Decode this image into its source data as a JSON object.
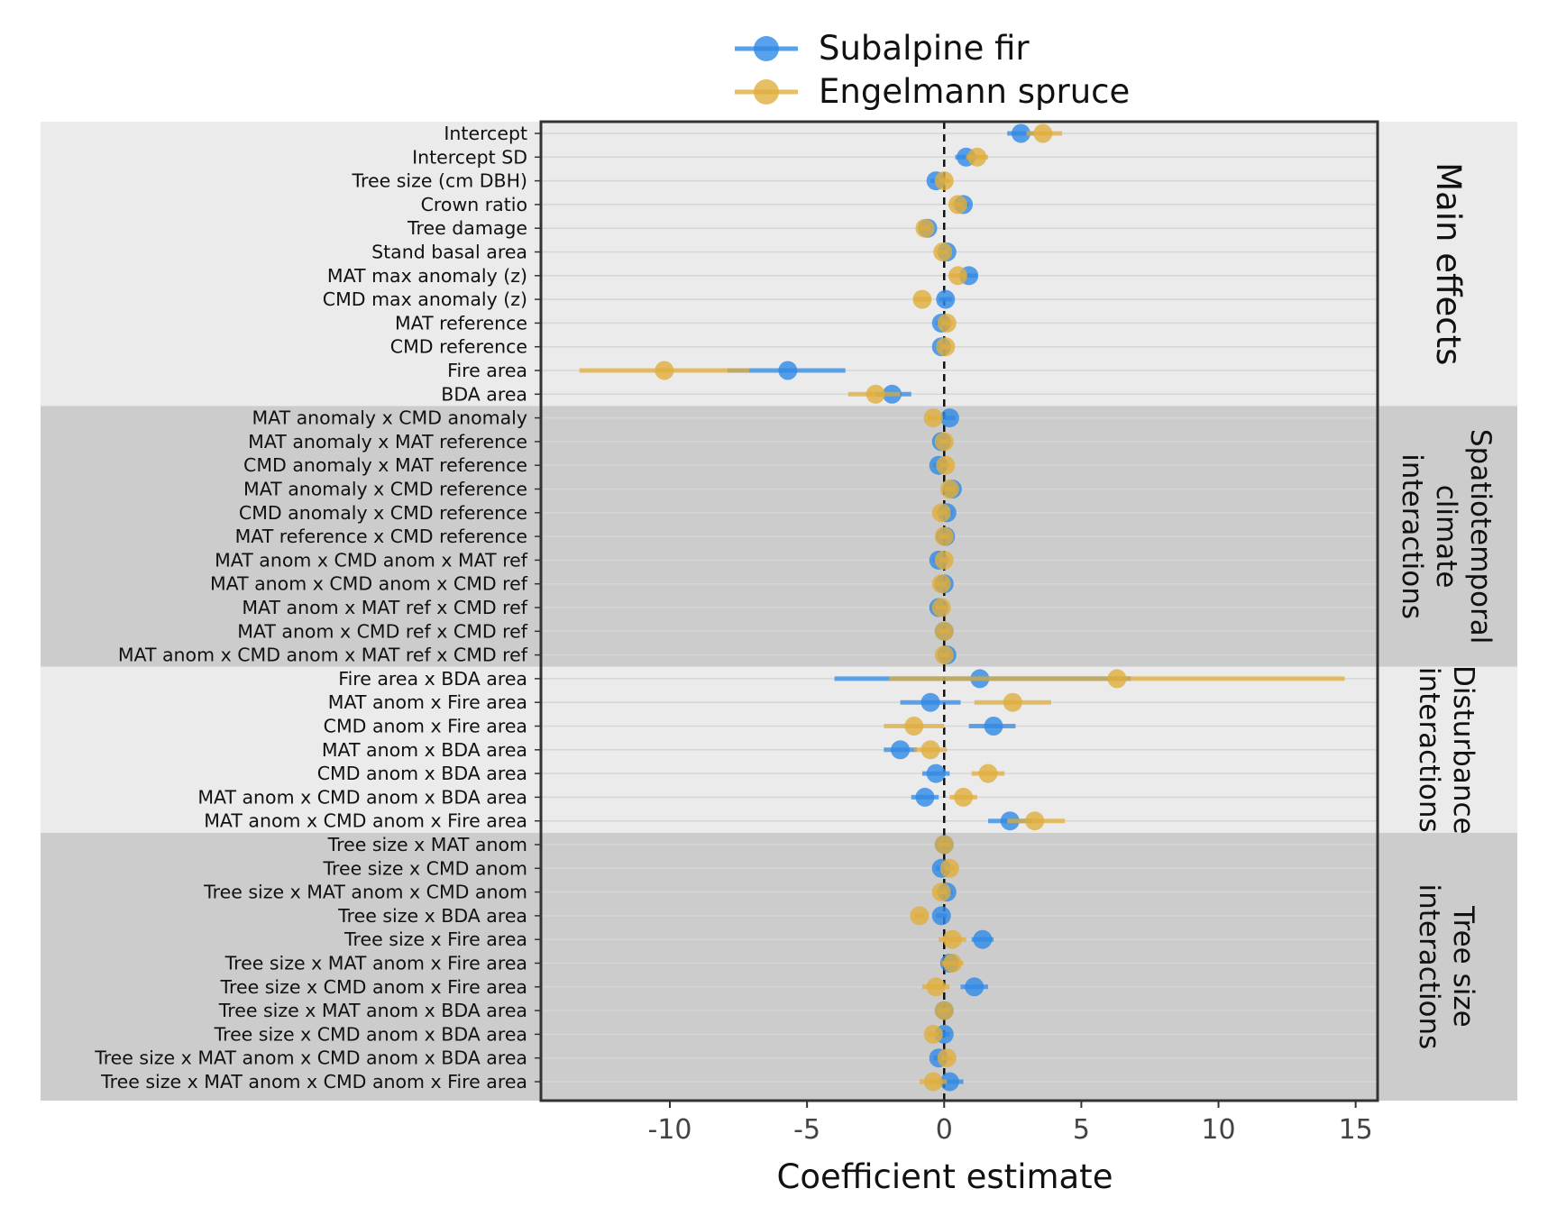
{
  "chart_data": {
    "type": "scatter",
    "subtype": "coefficient-dot-whisker",
    "xlabel": "Coefficient estimate",
    "xlim": [
      -14.7,
      15.8
    ],
    "xticks": [
      -10,
      -5,
      0,
      5,
      10,
      15
    ],
    "reference_line_x": 0,
    "legend": {
      "position": "top",
      "entries": [
        "Subalpine fir",
        "Engelmann spruce"
      ]
    },
    "series": [
      {
        "name": "Subalpine fir",
        "color": "#2F8AE6"
      },
      {
        "name": "Engelmann spruce",
        "color": "#E0AE3C"
      }
    ],
    "panels": [
      {
        "label": "Main effects",
        "label_lines": [
          "Main effects"
        ],
        "shade": "light",
        "rows": [
          {
            "term": "Intercept",
            "fir": [
              2.8,
              2.3,
              3.3
            ],
            "spruce": [
              3.6,
              3.0,
              4.3
            ]
          },
          {
            "term": "Intercept SD",
            "fir": [
              0.8,
              0.4,
              1.2
            ],
            "spruce": [
              1.2,
              0.8,
              1.6
            ]
          },
          {
            "term": "Tree size (cm DBH)",
            "fir": [
              -0.3,
              -0.5,
              -0.1
            ],
            "spruce": [
              0.0,
              -0.2,
              0.2
            ]
          },
          {
            "term": "Crown ratio",
            "fir": [
              0.7,
              0.5,
              0.9
            ],
            "spruce": [
              0.5,
              0.3,
              0.7
            ]
          },
          {
            "term": "Tree damage",
            "fir": [
              -0.6,
              -0.8,
              -0.4
            ],
            "spruce": [
              -0.7,
              -0.9,
              -0.5
            ]
          },
          {
            "term": "Stand basal area",
            "fir": [
              0.1,
              -0.1,
              0.3
            ],
            "spruce": [
              -0.05,
              -0.25,
              0.15
            ]
          },
          {
            "term": "MAT max anomaly (z)",
            "fir": [
              0.9,
              0.6,
              1.2
            ],
            "spruce": [
              0.5,
              0.2,
              0.8
            ]
          },
          {
            "term": "CMD max anomaly (z)",
            "fir": [
              0.05,
              -0.2,
              0.3
            ],
            "spruce": [
              -0.8,
              -1.1,
              -0.5
            ]
          },
          {
            "term": "MAT reference",
            "fir": [
              -0.1,
              -0.3,
              0.1
            ],
            "spruce": [
              0.1,
              -0.1,
              0.3
            ]
          },
          {
            "term": "CMD reference",
            "fir": [
              -0.1,
              -0.3,
              0.1
            ],
            "spruce": [
              0.05,
              -0.15,
              0.25
            ]
          },
          {
            "term": "Fire area",
            "fir": [
              -5.7,
              -7.9,
              -3.6
            ],
            "spruce": [
              -10.2,
              -13.3,
              -7.1
            ]
          },
          {
            "term": "BDA area",
            "fir": [
              -1.9,
              -2.5,
              -1.2
            ],
            "spruce": [
              -2.5,
              -3.5,
              -1.6
            ]
          }
        ]
      },
      {
        "label": "Spatiotemporal climate interactions",
        "label_lines": [
          "Spatiotemporal",
          "climate",
          "interactions"
        ],
        "shade": "dark",
        "rows": [
          {
            "term": "MAT anomaly x CMD anomaly",
            "fir": [
              0.2,
              0.0,
              0.4
            ],
            "spruce": [
              -0.4,
              -0.6,
              -0.2
            ]
          },
          {
            "term": "MAT anomaly x MAT reference",
            "fir": [
              -0.1,
              -0.3,
              0.1
            ],
            "spruce": [
              0.0,
              -0.2,
              0.2
            ]
          },
          {
            "term": "CMD anomaly x MAT reference",
            "fir": [
              -0.2,
              -0.4,
              0.0
            ],
            "spruce": [
              0.05,
              -0.15,
              0.25
            ]
          },
          {
            "term": "MAT anomaly x CMD reference",
            "fir": [
              0.3,
              0.1,
              0.5
            ],
            "spruce": [
              0.2,
              0.0,
              0.4
            ]
          },
          {
            "term": "CMD anomaly x CMD reference",
            "fir": [
              0.1,
              -0.1,
              0.3
            ],
            "spruce": [
              -0.1,
              -0.3,
              0.1
            ]
          },
          {
            "term": "MAT reference x CMD reference",
            "fir": [
              0.05,
              -0.15,
              0.25
            ],
            "spruce": [
              0.0,
              -0.2,
              0.2
            ]
          },
          {
            "term": "MAT anom x CMD anom x MAT ref",
            "fir": [
              -0.2,
              -0.4,
              0.0
            ],
            "spruce": [
              0.0,
              -0.2,
              0.2
            ]
          },
          {
            "term": "MAT anom x CMD anom x CMD ref",
            "fir": [
              0.0,
              -0.2,
              0.2
            ],
            "spruce": [
              -0.1,
              -0.3,
              0.1
            ]
          },
          {
            "term": "MAT anom x MAT ref x CMD ref",
            "fir": [
              -0.2,
              -0.4,
              0.0
            ],
            "spruce": [
              -0.1,
              -0.3,
              0.1
            ]
          },
          {
            "term": "MAT anom x CMD ref x CMD ref",
            "fir": [
              0.0,
              -0.2,
              0.2
            ],
            "spruce": [
              0.0,
              -0.2,
              0.2
            ]
          },
          {
            "term": "MAT anom x CMD anom x MAT ref x CMD ref",
            "fir": [
              0.1,
              -0.1,
              0.3
            ],
            "spruce": [
              0.0,
              -0.2,
              0.2
            ]
          }
        ]
      },
      {
        "label": "Disturbance interactions",
        "label_lines": [
          "Disturbance",
          "interactions"
        ],
        "shade": "light",
        "rows": [
          {
            "term": "Fire area x BDA area",
            "fir": [
              1.3,
              -4.0,
              6.8
            ],
            "spruce": [
              6.3,
              -2.0,
              14.6
            ]
          },
          {
            "term": "MAT anom x Fire area",
            "fir": [
              -0.5,
              -1.6,
              0.6
            ],
            "spruce": [
              2.5,
              1.1,
              3.9
            ]
          },
          {
            "term": "CMD anom x Fire area",
            "fir": [
              1.8,
              0.9,
              2.6
            ],
            "spruce": [
              -1.1,
              -2.2,
              0.0
            ]
          },
          {
            "term": "MAT anom x BDA area",
            "fir": [
              -1.6,
              -2.2,
              -1.0
            ],
            "spruce": [
              -0.5,
              -1.1,
              0.1
            ]
          },
          {
            "term": "CMD anom x BDA area",
            "fir": [
              -0.3,
              -0.8,
              0.2
            ],
            "spruce": [
              1.6,
              1.0,
              2.2
            ]
          },
          {
            "term": "MAT anom x CMD anom x BDA area",
            "fir": [
              -0.7,
              -1.2,
              -0.2
            ],
            "spruce": [
              0.7,
              0.2,
              1.2
            ]
          },
          {
            "term": "MAT anom x CMD anom x Fire area",
            "fir": [
              2.4,
              1.6,
              3.2
            ],
            "spruce": [
              3.3,
              2.3,
              4.4
            ]
          }
        ]
      },
      {
        "label": "Tree size interactions",
        "label_lines": [
          "Tree size",
          "interactions"
        ],
        "shade": "dark",
        "rows": [
          {
            "term": "Tree size x MAT anom",
            "fir": [
              0.0,
              -0.2,
              0.2
            ],
            "spruce": [
              0.0,
              -0.2,
              0.2
            ]
          },
          {
            "term": "Tree size x CMD anom",
            "fir": [
              -0.1,
              -0.3,
              0.1
            ],
            "spruce": [
              0.2,
              0.0,
              0.4
            ]
          },
          {
            "term": "Tree size x MAT anom x CMD anom",
            "fir": [
              0.1,
              -0.1,
              0.3
            ],
            "spruce": [
              -0.1,
              -0.3,
              0.1
            ]
          },
          {
            "term": "Tree size x BDA area",
            "fir": [
              -0.1,
              -0.3,
              0.1
            ],
            "spruce": [
              -0.9,
              -1.1,
              -0.7
            ]
          },
          {
            "term": "Tree size x Fire area",
            "fir": [
              1.4,
              1.0,
              1.8
            ],
            "spruce": [
              0.3,
              -0.2,
              0.8
            ]
          },
          {
            "term": "Tree size x MAT anom x Fire area",
            "fir": [
              0.2,
              -0.1,
              0.5
            ],
            "spruce": [
              0.3,
              -0.1,
              0.7
            ]
          },
          {
            "term": "Tree size x CMD anom x Fire area",
            "fir": [
              1.1,
              0.6,
              1.6
            ],
            "spruce": [
              -0.3,
              -0.8,
              0.2
            ]
          },
          {
            "term": "Tree size x MAT anom x BDA area",
            "fir": [
              0.0,
              -0.2,
              0.2
            ],
            "spruce": [
              0.0,
              -0.2,
              0.2
            ]
          },
          {
            "term": "Tree size x CMD anom x BDA area",
            "fir": [
              0.0,
              -0.2,
              0.2
            ],
            "spruce": [
              -0.4,
              -0.6,
              -0.2
            ]
          },
          {
            "term": "Tree size x MAT anom x CMD anom x BDA area",
            "fir": [
              -0.2,
              -0.4,
              0.0
            ],
            "spruce": [
              0.1,
              -0.1,
              0.3
            ]
          },
          {
            "term": "Tree size x MAT anom x CMD anom x Fire area",
            "fir": [
              0.2,
              -0.2,
              0.7
            ],
            "spruce": [
              -0.4,
              -0.9,
              0.1
            ]
          }
        ]
      }
    ]
  }
}
